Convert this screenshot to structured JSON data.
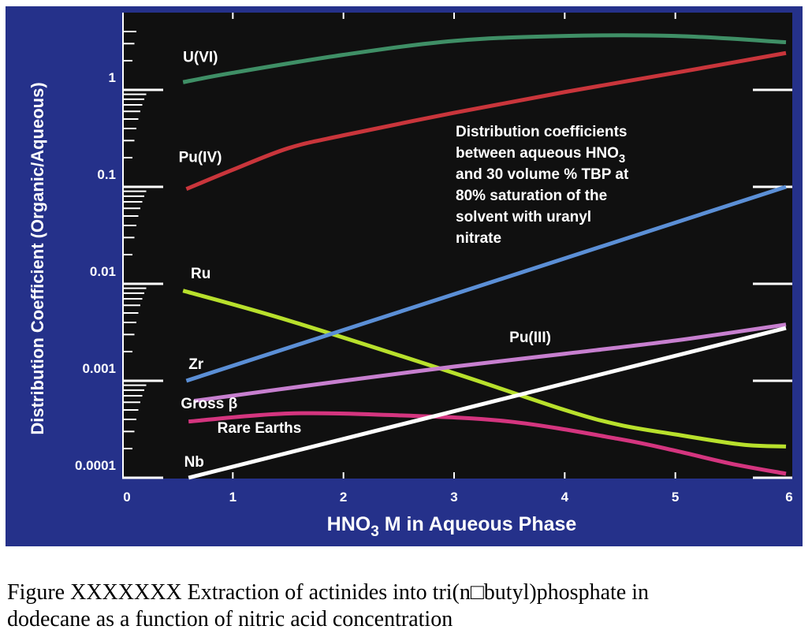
{
  "chart_data": {
    "type": "line",
    "ylabel": "Distribution Coefficient (Organic/Aqueous)",
    "xlabel": "HNO",
    "xlabel_sub": "3",
    "xlabel_rest": " M in Aqueous Phase",
    "xlim": [
      0,
      6
    ],
    "ylim": [
      0.0001,
      4
    ],
    "y_scale": "log",
    "x_ticks": [
      0,
      1,
      2,
      3,
      4,
      5,
      6
    ],
    "y_ticks": [
      {
        "value": 0.0001,
        "label": "0.0001"
      },
      {
        "value": 0.001,
        "label": "0.001"
      },
      {
        "value": 0.01,
        "label": "0.01"
      },
      {
        "value": 0.1,
        "label": "0.1"
      },
      {
        "value": 1,
        "label": "1"
      }
    ],
    "grid": false,
    "background": "#101010",
    "series": [
      {
        "name": "U(VI)",
        "color": "#3f8f66",
        "points": [
          [
            0.55,
            1.2
          ],
          [
            1.0,
            1.5
          ],
          [
            2.0,
            2.3
          ],
          [
            3.0,
            3.2
          ],
          [
            4.0,
            3.6
          ],
          [
            5.0,
            3.6
          ],
          [
            6.0,
            3.1
          ]
        ]
      },
      {
        "name": "Pu(IV)",
        "color": "#c9353b",
        "points": [
          [
            0.58,
            0.095
          ],
          [
            1.0,
            0.15
          ],
          [
            1.5,
            0.25
          ],
          [
            2.0,
            0.34
          ],
          [
            3.0,
            0.58
          ],
          [
            4.0,
            0.95
          ],
          [
            5.0,
            1.5
          ],
          [
            6.0,
            2.4
          ]
        ]
      },
      {
        "name": "Ru",
        "color": "#b8e02c",
        "points": [
          [
            0.55,
            0.0085
          ],
          [
            1.5,
            0.0042
          ],
          [
            3.0,
            0.0012
          ],
          [
            4.0,
            0.0005
          ],
          [
            4.5,
            0.00035
          ],
          [
            5.0,
            0.00028
          ],
          [
            5.6,
            0.00022
          ],
          [
            6.0,
            0.00021
          ]
        ]
      },
      {
        "name": "Zr",
        "color": "#5b8fd6",
        "points": [
          [
            0.58,
            0.001
          ],
          [
            6.0,
            0.1
          ]
        ]
      },
      {
        "name": "Pu(III)",
        "color": "#c77fcf",
        "points": [
          [
            0.65,
            0.00062
          ],
          [
            2.0,
            0.001
          ],
          [
            3.0,
            0.0014
          ],
          [
            4.0,
            0.0019
          ],
          [
            5.0,
            0.0026
          ],
          [
            6.0,
            0.0038
          ]
        ]
      },
      {
        "name": "Rare Earths",
        "color": "#d4357f",
        "points": [
          [
            0.6,
            0.00038
          ],
          [
            1.5,
            0.00046
          ],
          [
            2.5,
            0.00044
          ],
          [
            3.5,
            0.00038
          ],
          [
            4.5,
            0.00025
          ],
          [
            5.0,
            0.00019
          ],
          [
            5.5,
            0.00014
          ],
          [
            6.0,
            0.00011
          ]
        ]
      },
      {
        "name": "Nb",
        "color": "#ffffff",
        "points": [
          [
            0.6,
            0.0001
          ],
          [
            6.0,
            0.0035
          ]
        ]
      }
    ],
    "curve_labels": [
      {
        "text": "U(VI)",
        "x": 0.55,
        "y": 1.95
      },
      {
        "text": "Pu(IV)",
        "x": 0.51,
        "y": 0.18
      },
      {
        "text": "Ru",
        "x": 0.62,
        "y": 0.0114
      },
      {
        "text": "Zr",
        "x": 0.6,
        "y": 0.00133
      },
      {
        "text": "Gross β",
        "x": 0.53,
        "y": 0.00052
      },
      {
        "text": "Rare Earths",
        "x": 0.86,
        "y": 0.00029
      },
      {
        "text": "Nb",
        "x": 0.56,
        "y": 0.00013
      },
      {
        "text": "Pu(III)",
        "x": 3.5,
        "y": 0.0025
      }
    ],
    "annotation": {
      "lines": [
        {
          "text": "Distribution coefficients"
        },
        {
          "text": "between aqueous HNO",
          "sub": "3"
        },
        {
          "text": "and 30 volume % TBP at"
        },
        {
          "text": "80% saturation of the"
        },
        {
          "text": "solvent with uranyl"
        },
        {
          "text": "nitrate"
        }
      ]
    }
  },
  "caption": {
    "line1": "Figure XXXXXXX Extraction of actinides into tri(n□butyl)phosphate in",
    "line2": "dodecane as a function of nitric acid concentration"
  }
}
